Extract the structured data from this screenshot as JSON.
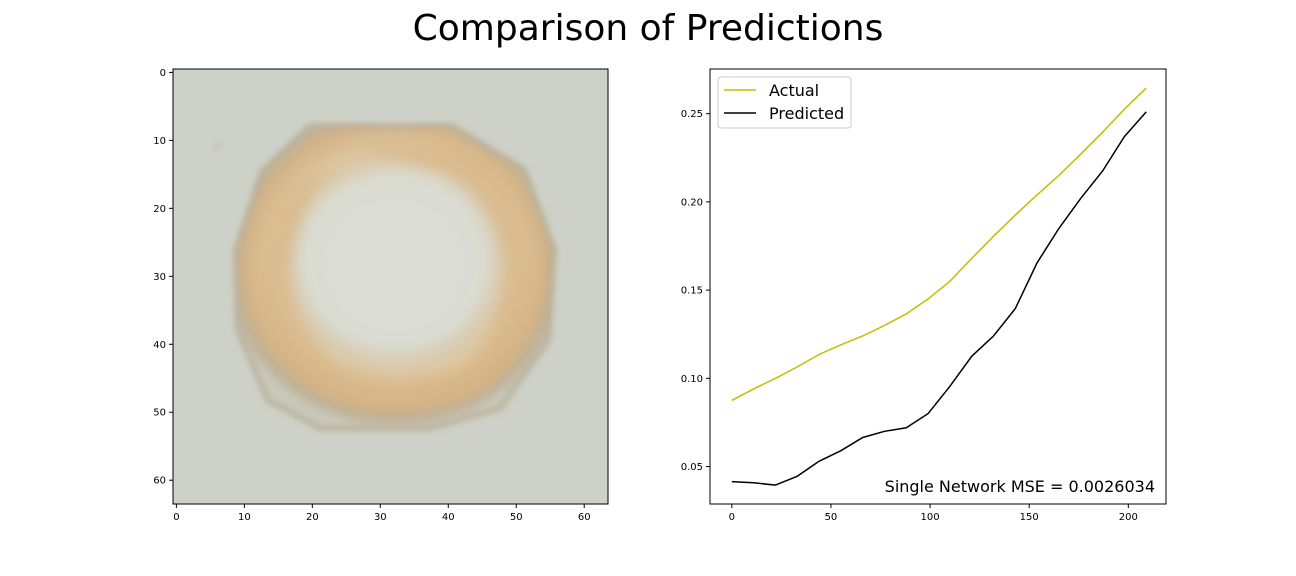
{
  "figure": {
    "title": "Comparison of Predictions"
  },
  "image_panel": {
    "description": "coin",
    "xticks": [
      "0",
      "10",
      "20",
      "30",
      "40",
      "50",
      "60"
    ],
    "yticks": [
      "0",
      "10",
      "20",
      "30",
      "40",
      "50",
      "60"
    ],
    "image_size": [
      64,
      64
    ],
    "colors": {
      "background": "#cdd1c7",
      "coin_ring": "#b9ab91",
      "coin_gold": "#d9b78a",
      "coin_center": "#dcddd3"
    }
  },
  "chart_data": {
    "type": "line",
    "title": "",
    "xlabel": "",
    "ylabel": "",
    "xlim": [
      -11,
      219
    ],
    "ylim": [
      0.0288,
      0.2753
    ],
    "xticks": [
      "0",
      "50",
      "100",
      "150",
      "200"
    ],
    "yticks": [
      "0.05",
      "0.10",
      "0.15",
      "0.20",
      "0.25"
    ],
    "legend": {
      "position": "upper-left",
      "font_size": "large"
    },
    "annotation": "Single Network MSE = 0.0026034",
    "series": [
      {
        "name": "Actual",
        "color": "#bfbf00",
        "x": [
          0,
          11,
          22,
          33,
          44,
          55,
          66,
          77,
          88,
          99,
          110,
          121,
          132,
          143,
          154,
          165,
          176,
          187,
          198,
          209
        ],
        "values": [
          0.0875,
          0.094,
          0.1,
          0.1065,
          0.1135,
          0.119,
          0.124,
          0.13,
          0.1365,
          0.145,
          0.155,
          0.168,
          0.1805,
          0.1925,
          0.204,
          0.215,
          0.227,
          0.2395,
          0.2525,
          0.2645
        ]
      },
      {
        "name": "Predicted",
        "color": "#000000",
        "x": [
          0,
          11,
          22,
          33,
          44,
          55,
          66,
          77,
          88,
          99,
          110,
          121,
          132,
          143,
          154,
          165,
          176,
          187,
          198,
          209
        ],
        "values": [
          0.0415,
          0.0408,
          0.0395,
          0.0445,
          0.053,
          0.059,
          0.0665,
          0.07,
          0.072,
          0.08,
          0.0955,
          0.1125,
          0.124,
          0.1395,
          0.1655,
          0.185,
          0.202,
          0.2175,
          0.237,
          0.251
        ]
      }
    ]
  }
}
